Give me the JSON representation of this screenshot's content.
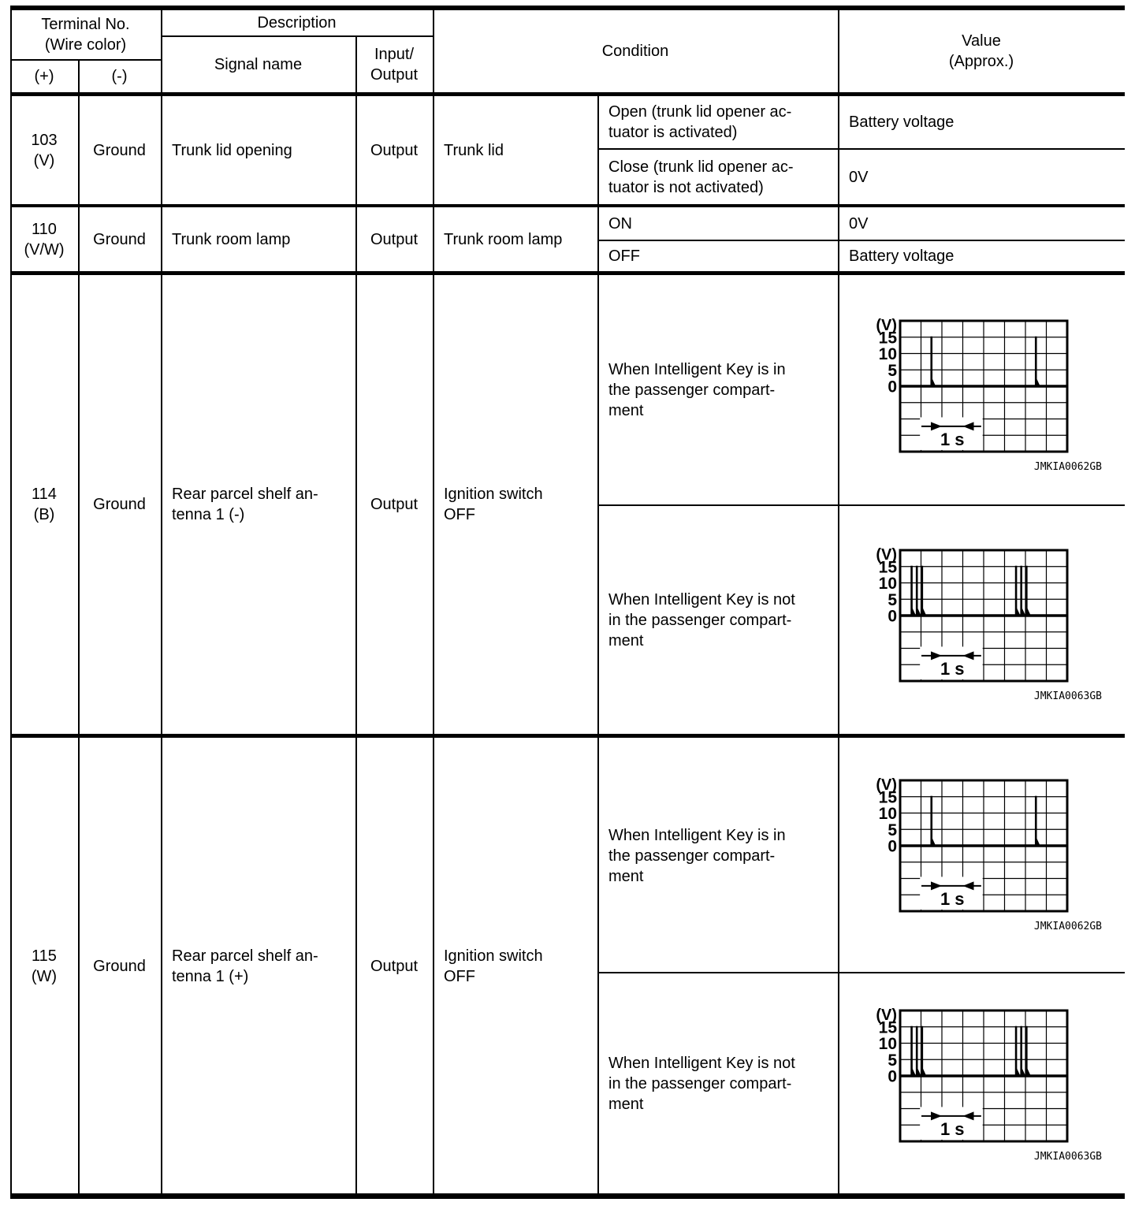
{
  "table": {
    "header": {
      "terminal_no": "Terminal No.\n(Wire color)",
      "plus": "(+)",
      "minus": "(-)",
      "description": "Description",
      "signal_name": "Signal name",
      "input_output": "Input/\nOutput",
      "condition": "Condition",
      "value": "Value\n(Approx.)"
    },
    "rows": [
      {
        "terminal": "103\n(V)",
        "ground": "Ground",
        "signal": "Trunk lid opening",
        "io": "Output",
        "condition": "Trunk lid",
        "subrows": [
          {
            "condition": "Open (trunk lid opener ac-\ntuator is activated)",
            "value": "Battery voltage"
          },
          {
            "condition": "Close (trunk lid opener ac-\ntuator is not activated)",
            "value": "0V"
          }
        ]
      },
      {
        "terminal": "110\n(V/W)",
        "ground": "Ground",
        "signal": "Trunk room lamp",
        "io": "Output",
        "condition": "Trunk room lamp",
        "subrows": [
          {
            "condition": "ON",
            "value": "0V"
          },
          {
            "condition": "OFF",
            "value": "Battery voltage"
          }
        ]
      },
      {
        "terminal": "114\n(B)",
        "ground": "Ground",
        "signal": "Rear parcel shelf an-\ntenna 1 (-)",
        "io": "Output",
        "condition": "Ignition switch\nOFF",
        "subrows": [
          {
            "condition": "When Intelligent Key is in\nthe passenger compart-\nment",
            "waveform": {
              "type": "pulse",
              "unit": "(V)",
              "y_ticks": [
                "15",
                "10",
                "5",
                "0"
              ],
              "grid_cols": 8,
              "grid_rows": 8,
              "zero_row": 4,
              "peak_v": 15,
              "spike_groups_cells": [
                [
                  1.5
                ],
                [
                  6.5
                ]
              ],
              "interval_label": "1 s",
              "interval_span_cells": [
                2,
                3
              ],
              "caption": "JMKIA0062GB"
            }
          },
          {
            "condition": "When Intelligent Key is not\nin the passenger compart-\nment",
            "waveform": {
              "type": "pulse",
              "unit": "(V)",
              "y_ticks": [
                "15",
                "10",
                "5",
                "0"
              ],
              "grid_cols": 8,
              "grid_rows": 8,
              "zero_row": 4,
              "peak_v": 15,
              "spike_groups_cells": [
                [
                  0.55,
                  0.8,
                  1.05
                ],
                [
                  5.55,
                  5.8,
                  6.05
                ]
              ],
              "interval_label": "1 s",
              "interval_span_cells": [
                2,
                3
              ],
              "caption": "JMKIA0063GB"
            }
          }
        ]
      },
      {
        "terminal": "115\n(W)",
        "ground": "Ground",
        "signal": "Rear parcel shelf an-\ntenna 1 (+)",
        "io": "Output",
        "condition": "Ignition switch\nOFF",
        "subrows": [
          {
            "condition": "When Intelligent Key is in\nthe passenger compart-\nment",
            "waveform": {
              "type": "pulse",
              "unit": "(V)",
              "y_ticks": [
                "15",
                "10",
                "5",
                "0"
              ],
              "grid_cols": 8,
              "grid_rows": 8,
              "zero_row": 4,
              "peak_v": 15,
              "spike_groups_cells": [
                [
                  1.5
                ],
                [
                  6.5
                ]
              ],
              "interval_label": "1 s",
              "interval_span_cells": [
                2,
                3
              ],
              "caption": "JMKIA0062GB"
            }
          },
          {
            "condition": "When Intelligent Key is not\nin the passenger compart-\nment",
            "waveform": {
              "type": "pulse",
              "unit": "(V)",
              "y_ticks": [
                "15",
                "10",
                "5",
                "0"
              ],
              "grid_cols": 8,
              "grid_rows": 8,
              "zero_row": 4,
              "peak_v": 15,
              "spike_groups_cells": [
                [
                  0.55,
                  0.8,
                  1.05
                ],
                [
                  5.55,
                  5.8,
                  6.05
                ]
              ],
              "interval_label": "1 s",
              "interval_span_cells": [
                2,
                3
              ],
              "caption": "JMKIA0063GB"
            }
          }
        ]
      }
    ]
  }
}
